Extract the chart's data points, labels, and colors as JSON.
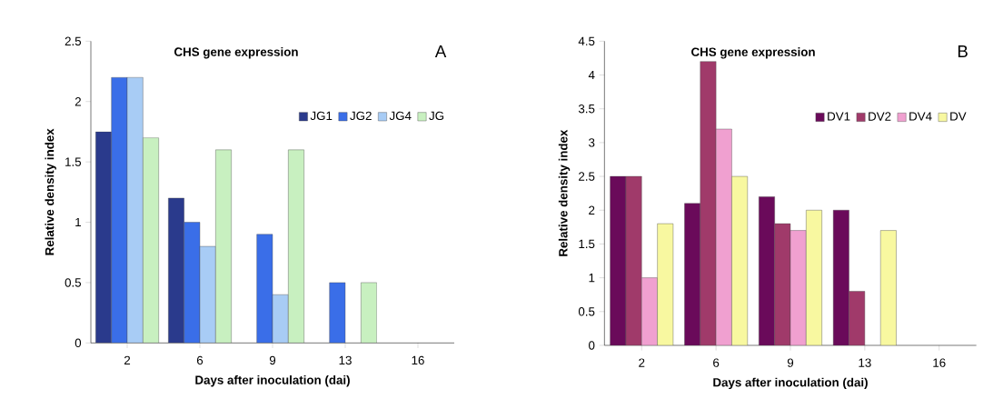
{
  "chart_data": [
    {
      "type": "bar",
      "title": "CHS gene expression",
      "xlabel": "Days after inoculation (dai)",
      "ylabel": "Relative density index",
      "categories": [
        "2",
        "6",
        "9",
        "13",
        "16"
      ],
      "series": [
        {
          "name": "JG1",
          "color": "#2a3a8c",
          "values": [
            1.75,
            1.2,
            null,
            null,
            null
          ]
        },
        {
          "name": "JG2",
          "color": "#3a6ee8",
          "values": [
            2.2,
            1.0,
            0.9,
            0.5,
            null
          ]
        },
        {
          "name": "JG4",
          "color": "#a8ccf5",
          "values": [
            2.2,
            0.8,
            0.4,
            null,
            null
          ]
        },
        {
          "name": "JG",
          "color": "#c8f0c0",
          "values": [
            1.7,
            1.6,
            1.6,
            0.5,
            null
          ]
        }
      ],
      "ylim": [
        0,
        2.5
      ],
      "yticks": [
        0,
        0.5,
        1,
        1.5,
        2,
        2.5
      ],
      "legend": "right",
      "annotations": [
        "A"
      ]
    },
    {
      "type": "bar",
      "title": "CHS gene expression",
      "xlabel": "Days after inoculation (dai)",
      "ylabel": "Relative density index",
      "categories": [
        "2",
        "6",
        "9",
        "13",
        "16"
      ],
      "series": [
        {
          "name": "DV1",
          "color": "#6a0a5a",
          "values": [
            2.5,
            2.1,
            2.2,
            2.0,
            null
          ]
        },
        {
          "name": "DV2",
          "color": "#a03a6a",
          "values": [
            2.5,
            4.2,
            1.8,
            0.8,
            null
          ]
        },
        {
          "name": "DV4",
          "color": "#f0a0d0",
          "values": [
            1.0,
            3.2,
            1.7,
            null,
            null
          ]
        },
        {
          "name": "DV",
          "color": "#f8f8a0",
          "values": [
            1.8,
            2.5,
            2.0,
            1.7,
            null
          ]
        }
      ],
      "ylim": [
        0,
        4.5
      ],
      "yticks": [
        0,
        0.5,
        1,
        1.5,
        2,
        2.5,
        3,
        3.5,
        4,
        4.5
      ],
      "legend": "right",
      "annotations": [
        "B"
      ]
    }
  ]
}
